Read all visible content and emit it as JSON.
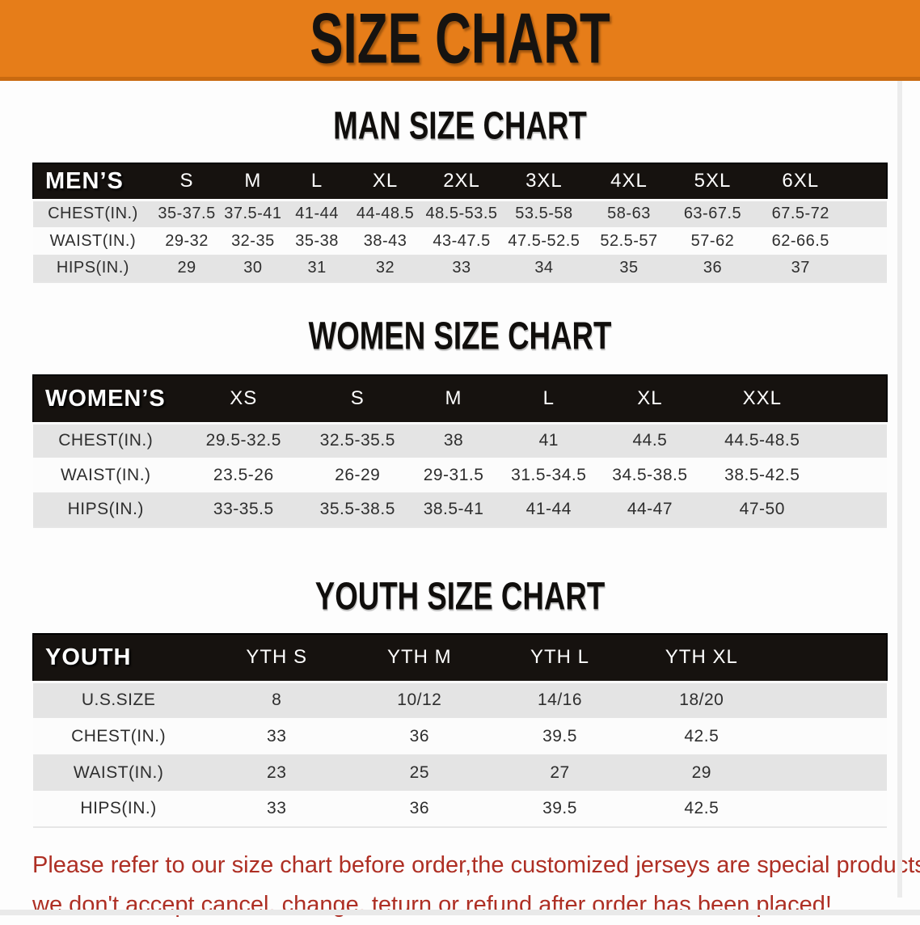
{
  "banner": {
    "title": "SIZE CHART"
  },
  "sections": [
    {
      "title": "MAN SIZE CHART",
      "corner_label": "MEN’S",
      "columns": [
        "S",
        "M",
        "L",
        "XL",
        "2XL",
        "3XL",
        "4XL",
        "5XL",
        "6XL"
      ],
      "rows": [
        {
          "label": "CHEST(IN.)",
          "values": [
            "35-37.5",
            "37.5-41",
            "41-44",
            "44-48.5",
            "48.5-53.5",
            "53.5-58",
            "58-63",
            "63-67.5",
            "67.5-72"
          ]
        },
        {
          "label": "WAIST(IN.)",
          "values": [
            "29-32",
            "32-35",
            "35-38",
            "38-43",
            "43-47.5",
            "47.5-52.5",
            "52.5-57",
            "57-62",
            "62-66.5"
          ]
        },
        {
          "label": "HIPS(IN.)",
          "values": [
            "29",
            "30",
            "31",
            "32",
            "33",
            "34",
            "35",
            "36",
            "37"
          ]
        }
      ]
    },
    {
      "title": "WOMEN SIZE CHART",
      "corner_label": "WOMEN’S",
      "columns": [
        "XS",
        "S",
        "M",
        "L",
        "XL",
        "XXL"
      ],
      "rows": [
        {
          "label": "CHEST(IN.)",
          "values": [
            "29.5-32.5",
            "32.5-35.5",
            "38",
            "41",
            "44.5",
            "44.5-48.5"
          ]
        },
        {
          "label": "WAIST(IN.)",
          "values": [
            "23.5-26",
            "26-29",
            "29-31.5",
            "31.5-34.5",
            "34.5-38.5",
            "38.5-42.5"
          ]
        },
        {
          "label": "HIPS(IN.)",
          "values": [
            "33-35.5",
            "35.5-38.5",
            "38.5-41",
            "41-44",
            "44-47",
            "47-50"
          ]
        }
      ]
    },
    {
      "title": "YOUTH SIZE CHART",
      "corner_label": "YOUTH",
      "columns": [
        "YTH S",
        "YTH M",
        "YTH L",
        "YTH XL"
      ],
      "rows": [
        {
          "label": "U.S.SIZE",
          "values": [
            "8",
            "10/12",
            "14/16",
            "18/20"
          ]
        },
        {
          "label": "CHEST(IN.)",
          "values": [
            "33",
            "36",
            "39.5",
            "42.5"
          ]
        },
        {
          "label": "WAIST(IN.)",
          "values": [
            "23",
            "25",
            "27",
            "29"
          ]
        },
        {
          "label": "HIPS(IN.)",
          "values": [
            "33",
            "36",
            "39.5",
            "42.5"
          ]
        }
      ]
    }
  ],
  "disclaimer": {
    "line1": "Please refer to our size chart before order,the customized jerseys are special products,",
    "line2": "we don't accept cancel, change, teturn or refund after order has been placed!"
  },
  "colors": {
    "banner_bg": "#e67d19",
    "banner_text": "#161310",
    "header_bg": "#16120f",
    "row_gray": "#e4e4e4",
    "row_white": "#fcfcfc",
    "disclaimer_red": "#ae2f24"
  }
}
